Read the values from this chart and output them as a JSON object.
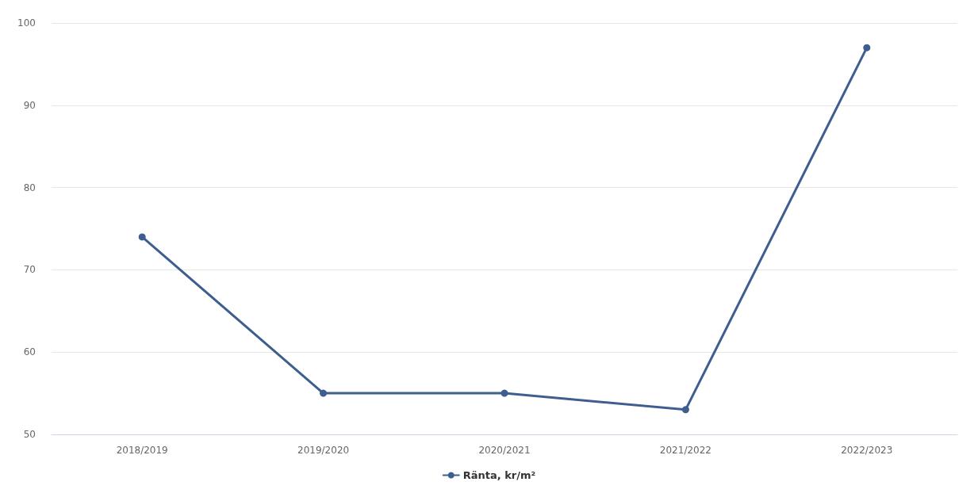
{
  "chart_data": {
    "type": "line",
    "categories": [
      "2018/2019",
      "2019/2020",
      "2020/2021",
      "2021/2022",
      "2022/2023"
    ],
    "series": [
      {
        "name": "Ränta, kr/m²",
        "color": "#3d5e8f",
        "values": [
          74,
          55,
          55,
          53,
          97
        ]
      }
    ],
    "ylim": [
      50,
      100
    ],
    "yticks": [
      50,
      60,
      70,
      80,
      90,
      100
    ],
    "grid": "y",
    "legend": "bottom",
    "marker": "circle",
    "line_style": "solid"
  }
}
